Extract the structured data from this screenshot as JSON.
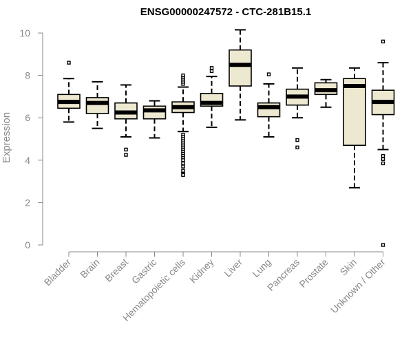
{
  "chart_data": {
    "type": "boxplot",
    "title": "ENSG00000247572 - CTC-281B15.1",
    "xlabel": "",
    "ylabel": "Expression",
    "ylim": [
      0,
      10
    ],
    "yticks": [
      0,
      2,
      4,
      6,
      8,
      10
    ],
    "grid": false,
    "colors": {
      "box_fill": "#ede8d0",
      "stroke": "#000000",
      "axis": "#888888"
    },
    "categories": [
      "Bladder",
      "Brain",
      "Breast",
      "Gastric",
      "Hematopoietic cells",
      "Kidney",
      "Liver",
      "Lung",
      "Pancreas",
      "Prostate",
      "Skin",
      "Unknown / Other"
    ],
    "boxes": [
      {
        "category": "Bladder",
        "whisker_low": 5.8,
        "q1": 6.45,
        "median": 6.75,
        "q3": 7.1,
        "whisker_high": 7.85,
        "outliers": [
          8.6
        ]
      },
      {
        "category": "Brain",
        "whisker_low": 5.5,
        "q1": 6.2,
        "median": 6.7,
        "q3": 6.95,
        "whisker_high": 7.7,
        "outliers": []
      },
      {
        "category": "Breast",
        "whisker_low": 5.1,
        "q1": 5.95,
        "median": 6.25,
        "q3": 6.7,
        "whisker_high": 7.55,
        "outliers": [
          4.5,
          4.25
        ]
      },
      {
        "category": "Gastric",
        "whisker_low": 5.05,
        "q1": 5.95,
        "median": 6.35,
        "q3": 6.55,
        "whisker_high": 6.8,
        "outliers": []
      },
      {
        "category": "Hematopoietic cells",
        "whisker_low": 5.35,
        "q1": 6.25,
        "median": 6.5,
        "q3": 6.75,
        "whisker_high": 7.45,
        "outliers": [
          7.6,
          7.7,
          7.8,
          7.9,
          8.0,
          5.2,
          5.1,
          5.0,
          4.9,
          4.8,
          4.7,
          4.6,
          4.5,
          4.4,
          4.3,
          4.2,
          4.1,
          4.0,
          3.85,
          3.7,
          3.5,
          3.35,
          3.3
        ]
      },
      {
        "category": "Kidney",
        "whisker_low": 5.55,
        "q1": 6.55,
        "median": 6.7,
        "q3": 7.15,
        "whisker_high": 7.95,
        "outliers": [
          8.2,
          8.35
        ]
      },
      {
        "category": "Liver",
        "whisker_low": 5.9,
        "q1": 7.5,
        "median": 8.5,
        "q3": 9.2,
        "whisker_high": 10.15,
        "outliers": []
      },
      {
        "category": "Lung",
        "whisker_low": 5.1,
        "q1": 6.05,
        "median": 6.5,
        "q3": 6.7,
        "whisker_high": 7.6,
        "outliers": [
          8.05
        ]
      },
      {
        "category": "Pancreas",
        "whisker_low": 6.0,
        "q1": 6.6,
        "median": 7.0,
        "q3": 7.35,
        "whisker_high": 8.35,
        "outliers": [
          4.95,
          4.6
        ]
      },
      {
        "category": "Prostate",
        "whisker_low": 6.5,
        "q1": 7.1,
        "median": 7.3,
        "q3": 7.65,
        "whisker_high": 7.8,
        "outliers": []
      },
      {
        "category": "Skin",
        "whisker_low": 2.7,
        "q1": 4.7,
        "median": 7.5,
        "q3": 7.85,
        "whisker_high": 8.35,
        "outliers": []
      },
      {
        "category": "Unknown / Other",
        "whisker_low": 4.5,
        "q1": 6.15,
        "median": 6.75,
        "q3": 7.3,
        "whisker_high": 8.6,
        "outliers": [
          9.6,
          4.2,
          4.05,
          3.85,
          0.0
        ]
      }
    ]
  }
}
